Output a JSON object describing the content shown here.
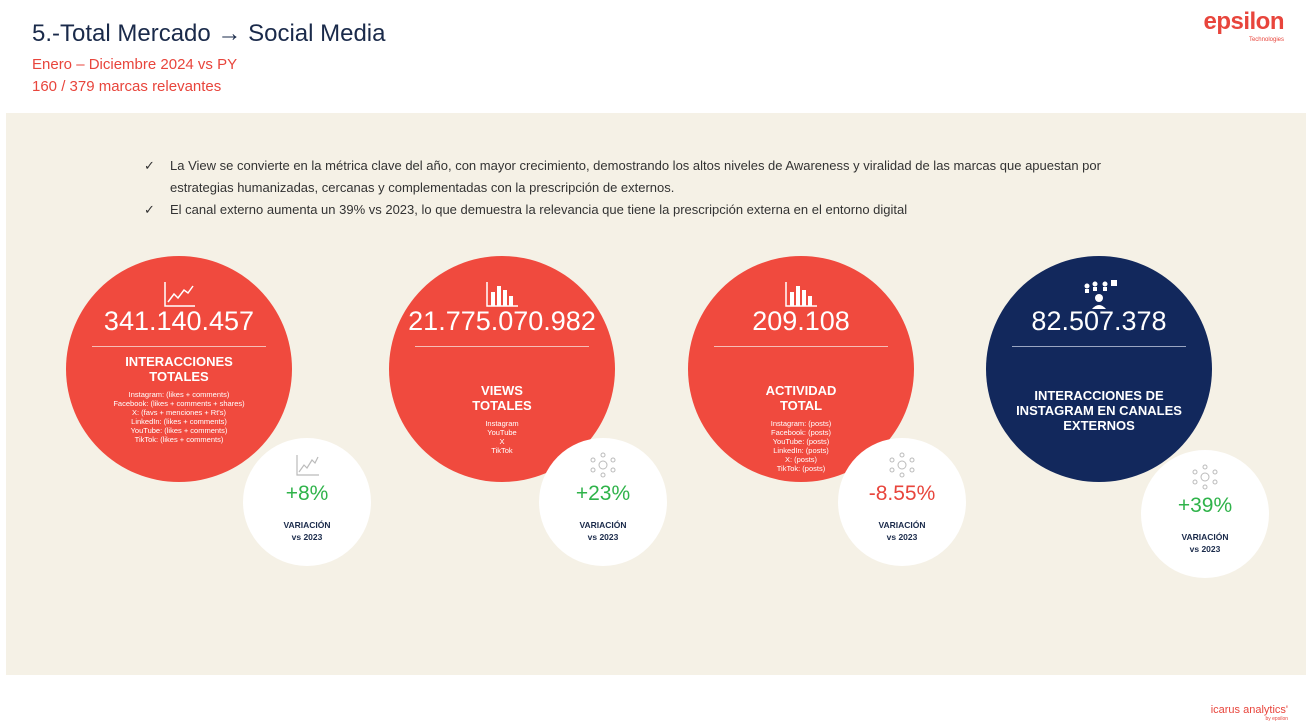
{
  "header": {
    "title": "5.-Total Mercado → Social Media",
    "subtitle1": "Enero – Diciembre 2024 vs PY",
    "subtitle2": "160 / 379 marcas relevantes"
  },
  "logo": {
    "main": "epsilon",
    "sub": "Technologies"
  },
  "bullets": [
    "La View se convierte en la métrica clave del año, con mayor crecimiento, demostrando los altos niveles de Awareness y viralidad de las marcas que apuestan por estrategias humanizadas, cercanas y complementadas con la prescripción de externos.",
    "El canal externo aumenta un 39% vs 2023, lo que demuestra la relevancia que tiene la prescripción externa en el entorno digital"
  ],
  "metrics": [
    {
      "value": "341.140.457",
      "label_line1": "INTERACCIONES",
      "label_line2": "TOTALES",
      "details": [
        "Instagram: (likes + comments)",
        "Facebook: (likes + comments + shares)",
        "X: (favs + menciones + Rt's)",
        "LinkedIn: (likes + comments)",
        "YouTube: (likes + comments)",
        "TikTok: (likes + comments)"
      ],
      "variation": "+8%",
      "variation_label": "VARIACIÓN",
      "variation_year": "vs 2023",
      "icon": "line-chart-icon"
    },
    {
      "value": "21.775.070.982",
      "label_line1": "VIEWS",
      "label_line2": "TOTALES",
      "details": [
        "Instagram",
        "YouTube",
        "X",
        "TikTok"
      ],
      "variation": "+23%",
      "variation_label": "VARIACIÓN",
      "variation_year": "vs 2023",
      "icon": "bar-chart-icon"
    },
    {
      "value": "209.108",
      "label_line1": "ACTIVIDAD",
      "label_line2": "TOTAL",
      "details": [
        "Instagram: (posts)",
        "Facebook: (posts)",
        "YouTube: (posts)",
        "LinkedIn: (posts)",
        "X: (posts)",
        "TikTok: (posts)"
      ],
      "variation": "-8.55%",
      "variation_label": "VARIACIÓN",
      "variation_year": "vs 2023",
      "icon": "bar-chart-icon"
    },
    {
      "value": "82.507.378",
      "label_line1": "INTERACCIONES DE",
      "label_line2": "INSTAGRAM EN CANALES",
      "label_line3": "EXTERNOS",
      "variation": "+39%",
      "variation_label": "VARIACIÓN",
      "variation_year": "vs 2023",
      "icon": "people-network-icon"
    }
  ],
  "footer": {
    "main": "icarus analytics'",
    "sub": "by epsilon"
  },
  "colors": {
    "accent_red": "#f04a3e",
    "navy": "#12285c",
    "positive": "#2fb34a",
    "panel_bg": "#f5f1e6"
  }
}
